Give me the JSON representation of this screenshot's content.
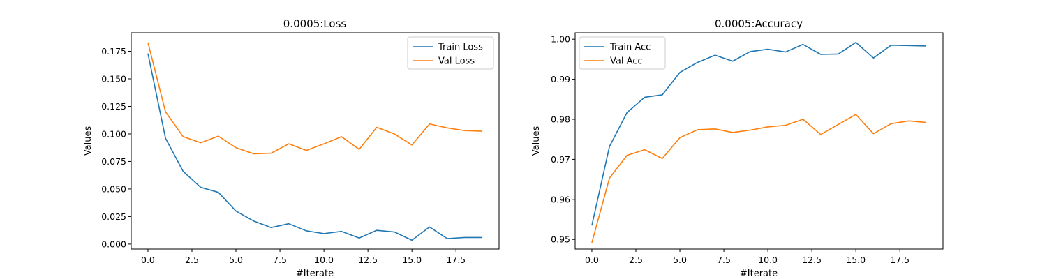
{
  "chart_data": [
    {
      "type": "line",
      "title": "0.0005:Loss",
      "xlabel": "#Iterate",
      "ylabel": "Values",
      "x": [
        0,
        1,
        2,
        3,
        4,
        5,
        6,
        7,
        8,
        9,
        10,
        11,
        12,
        13,
        14,
        15,
        16,
        17,
        18,
        19
      ],
      "xlim": [
        -0.95,
        19.95
      ],
      "ylim": [
        -0.0045,
        0.1918
      ],
      "x_ticks": [
        0.0,
        2.5,
        5.0,
        7.5,
        10.0,
        12.5,
        15.0,
        17.5
      ],
      "x_tick_labels": [
        "0.0",
        "2.5",
        "5.0",
        "7.5",
        "10.0",
        "12.5",
        "15.0",
        "17.5"
      ],
      "y_ticks": [
        0.0,
        0.025,
        0.05,
        0.075,
        0.1,
        0.125,
        0.15,
        0.175
      ],
      "y_tick_labels": [
        "0.000",
        "0.025",
        "0.050",
        "0.075",
        "0.100",
        "0.125",
        "0.150",
        "0.175"
      ],
      "legend_position": "top-right",
      "grid": false,
      "series": [
        {
          "name": "Train Loss",
          "color": "#1f77b4",
          "values": [
            0.173,
            0.096,
            0.066,
            0.0515,
            0.047,
            0.03,
            0.021,
            0.015,
            0.0185,
            0.012,
            0.0095,
            0.0115,
            0.0055,
            0.0125,
            0.011,
            0.0035,
            0.0155,
            0.005,
            0.006,
            0.006
          ]
        },
        {
          "name": "Val Loss",
          "color": "#ff7f0e",
          "values": [
            0.183,
            0.12,
            0.0975,
            0.092,
            0.098,
            0.0875,
            0.082,
            0.0825,
            0.091,
            0.085,
            0.091,
            0.0975,
            0.086,
            0.106,
            0.1,
            0.09,
            0.109,
            0.1055,
            0.103,
            0.1025
          ]
        }
      ]
    },
    {
      "type": "line",
      "title": "0.0005:Accuracy",
      "xlabel": "#Iterate",
      "ylabel": "Values",
      "x": [
        0,
        1,
        2,
        3,
        4,
        5,
        6,
        7,
        8,
        9,
        10,
        11,
        12,
        13,
        14,
        15,
        16,
        17,
        18,
        19
      ],
      "xlim": [
        -0.95,
        19.95
      ],
      "ylim": [
        0.9476,
        1.0016
      ],
      "x_ticks": [
        0.0,
        2.5,
        5.0,
        7.5,
        10.0,
        12.5,
        15.0,
        17.5
      ],
      "x_tick_labels": [
        "0.0",
        "2.5",
        "5.0",
        "7.5",
        "10.0",
        "12.5",
        "15.0",
        "17.5"
      ],
      "y_ticks": [
        0.95,
        0.96,
        0.97,
        0.98,
        0.99,
        1.0
      ],
      "y_tick_labels": [
        "0.95",
        "0.96",
        "0.97",
        "0.98",
        "0.99",
        "1.00"
      ],
      "legend_position": "top-left",
      "grid": false,
      "series": [
        {
          "name": "Train Acc",
          "color": "#1f77b4",
          "values": [
            0.9535,
            0.9732,
            0.9817,
            0.9855,
            0.9861,
            0.9917,
            0.9942,
            0.996,
            0.9945,
            0.9969,
            0.9975,
            0.9968,
            0.9987,
            0.9962,
            0.9963,
            0.9992,
            0.9953,
            0.9985,
            0.9984,
            0.9983
          ]
        },
        {
          "name": "Val Acc",
          "color": "#ff7f0e",
          "values": [
            0.9492,
            0.9653,
            0.971,
            0.9724,
            0.9702,
            0.9754,
            0.9774,
            0.9776,
            0.9767,
            0.9773,
            0.9781,
            0.9785,
            0.98,
            0.9762,
            0.9787,
            0.9812,
            0.9764,
            0.9789,
            0.9796,
            0.9792
          ]
        }
      ]
    }
  ]
}
